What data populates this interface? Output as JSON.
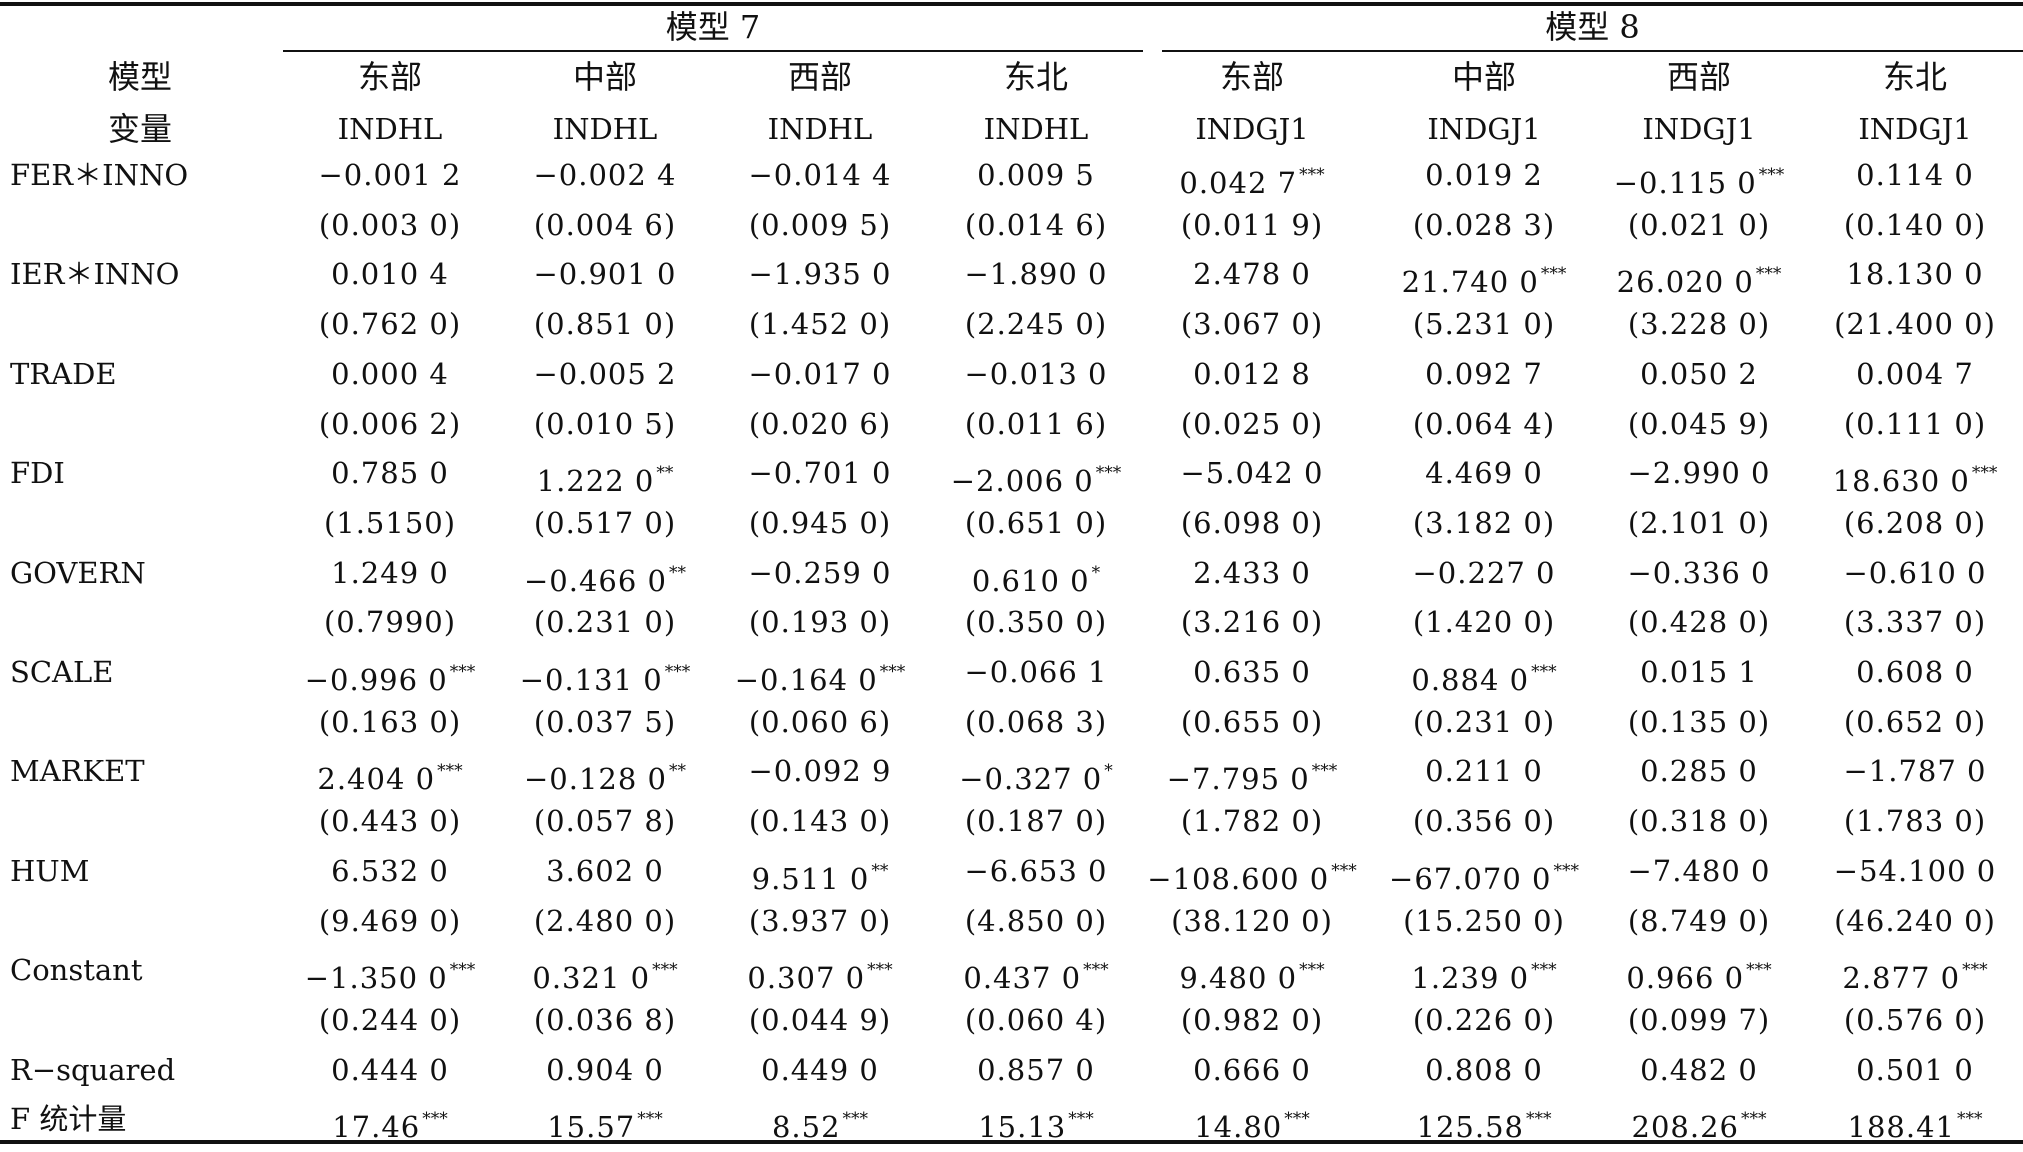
{
  "header": {
    "stub_line1": "模型",
    "stub_line2": "变量",
    "groups": [
      "模型 7",
      "模型 8"
    ],
    "regions": [
      "东部",
      "中部",
      "西部",
      "东北",
      "东部",
      "中部",
      "西部",
      "东北"
    ],
    "dependent": [
      "INDHL",
      "INDHL",
      "INDHL",
      "INDHL",
      "INDGJ1",
      "INDGJ1",
      "INDGJ1",
      "INDGJ1"
    ]
  },
  "rows": [
    {
      "label": "FER＊INNO",
      "cells": [
        {
          "v": "−0.001 2",
          "s": ""
        },
        {
          "v": "−0.002 4",
          "s": ""
        },
        {
          "v": "−0.014 4",
          "s": ""
        },
        {
          "v": "0.009 5",
          "s": ""
        },
        {
          "v": "0.042 7",
          "s": "***"
        },
        {
          "v": "0.019 2",
          "s": ""
        },
        {
          "v": "−0.115 0",
          "s": "***"
        },
        {
          "v": "0.114 0",
          "s": ""
        }
      ]
    },
    {
      "label": "",
      "cells": [
        {
          "v": "(0.003 0)",
          "s": ""
        },
        {
          "v": "(0.004 6)",
          "s": ""
        },
        {
          "v": "(0.009 5)",
          "s": ""
        },
        {
          "v": "(0.014 6)",
          "s": ""
        },
        {
          "v": "(0.011 9)",
          "s": ""
        },
        {
          "v": "(0.028 3)",
          "s": ""
        },
        {
          "v": "(0.021 0)",
          "s": ""
        },
        {
          "v": "(0.140 0)",
          "s": ""
        }
      ]
    },
    {
      "label": "IER＊INNO",
      "cells": [
        {
          "v": "0.010 4",
          "s": ""
        },
        {
          "v": "−0.901 0",
          "s": ""
        },
        {
          "v": "−1.935 0",
          "s": ""
        },
        {
          "v": "−1.890 0",
          "s": ""
        },
        {
          "v": "2.478 0",
          "s": ""
        },
        {
          "v": "21.740 0",
          "s": "***"
        },
        {
          "v": "26.020 0",
          "s": "***"
        },
        {
          "v": "18.130 0",
          "s": ""
        }
      ]
    },
    {
      "label": "",
      "cells": [
        {
          "v": "(0.762 0)",
          "s": ""
        },
        {
          "v": "(0.851 0)",
          "s": ""
        },
        {
          "v": "(1.452 0)",
          "s": ""
        },
        {
          "v": "(2.245 0)",
          "s": ""
        },
        {
          "v": "(3.067 0)",
          "s": ""
        },
        {
          "v": "(5.231 0)",
          "s": ""
        },
        {
          "v": "(3.228 0)",
          "s": ""
        },
        {
          "v": "(21.400 0)",
          "s": ""
        }
      ]
    },
    {
      "label": "TRADE",
      "cells": [
        {
          "v": "0.000 4",
          "s": ""
        },
        {
          "v": "−0.005 2",
          "s": ""
        },
        {
          "v": "−0.017 0",
          "s": ""
        },
        {
          "v": "−0.013 0",
          "s": ""
        },
        {
          "v": "0.012 8",
          "s": ""
        },
        {
          "v": "0.092 7",
          "s": ""
        },
        {
          "v": "0.050 2",
          "s": ""
        },
        {
          "v": "0.004 7",
          "s": ""
        }
      ]
    },
    {
      "label": "",
      "cells": [
        {
          "v": "(0.006 2)",
          "s": ""
        },
        {
          "v": "(0.010 5)",
          "s": ""
        },
        {
          "v": "(0.020 6)",
          "s": ""
        },
        {
          "v": "(0.011 6)",
          "s": ""
        },
        {
          "v": "(0.025 0)",
          "s": ""
        },
        {
          "v": "(0.064 4)",
          "s": ""
        },
        {
          "v": "(0.045 9)",
          "s": ""
        },
        {
          "v": "(0.111 0)",
          "s": ""
        }
      ]
    },
    {
      "label": "FDI",
      "cells": [
        {
          "v": "0.785 0",
          "s": ""
        },
        {
          "v": "1.222 0",
          "s": "**"
        },
        {
          "v": "−0.701 0",
          "s": ""
        },
        {
          "v": "−2.006 0",
          "s": "***"
        },
        {
          "v": "−5.042 0",
          "s": ""
        },
        {
          "v": "4.469 0",
          "s": ""
        },
        {
          "v": "−2.990 0",
          "s": ""
        },
        {
          "v": "18.630 0",
          "s": "***"
        }
      ]
    },
    {
      "label": "",
      "cells": [
        {
          "v": "(1.5150)",
          "s": ""
        },
        {
          "v": "(0.517 0)",
          "s": ""
        },
        {
          "v": "(0.945 0)",
          "s": ""
        },
        {
          "v": "(0.651 0)",
          "s": ""
        },
        {
          "v": "(6.098 0)",
          "s": ""
        },
        {
          "v": "(3.182 0)",
          "s": ""
        },
        {
          "v": "(2.101 0)",
          "s": ""
        },
        {
          "v": "(6.208 0)",
          "s": ""
        }
      ]
    },
    {
      "label": "GOVERN",
      "cells": [
        {
          "v": "1.249 0",
          "s": ""
        },
        {
          "v": "−0.466 0",
          "s": "**"
        },
        {
          "v": "−0.259 0",
          "s": ""
        },
        {
          "v": "0.610 0",
          "s": "*"
        },
        {
          "v": "2.433 0",
          "s": ""
        },
        {
          "v": "−0.227 0",
          "s": ""
        },
        {
          "v": "−0.336 0",
          "s": ""
        },
        {
          "v": "−0.610 0",
          "s": ""
        }
      ]
    },
    {
      "label": "",
      "cells": [
        {
          "v": "(0.7990)",
          "s": ""
        },
        {
          "v": "(0.231 0)",
          "s": ""
        },
        {
          "v": "(0.193 0)",
          "s": ""
        },
        {
          "v": "(0.350 0)",
          "s": ""
        },
        {
          "v": "(3.216 0)",
          "s": ""
        },
        {
          "v": "(1.420 0)",
          "s": ""
        },
        {
          "v": "(0.428 0)",
          "s": ""
        },
        {
          "v": "(3.337 0)",
          "s": ""
        }
      ]
    },
    {
      "label": "SCALE",
      "cells": [
        {
          "v": "−0.996 0",
          "s": "***"
        },
        {
          "v": "−0.131 0",
          "s": "***"
        },
        {
          "v": "−0.164 0",
          "s": "***"
        },
        {
          "v": "−0.066 1",
          "s": ""
        },
        {
          "v": "0.635 0",
          "s": ""
        },
        {
          "v": "0.884 0",
          "s": "***"
        },
        {
          "v": "0.015 1",
          "s": ""
        },
        {
          "v": "0.608 0",
          "s": ""
        }
      ]
    },
    {
      "label": "",
      "cells": [
        {
          "v": "(0.163 0)",
          "s": ""
        },
        {
          "v": "(0.037 5)",
          "s": ""
        },
        {
          "v": "(0.060 6)",
          "s": ""
        },
        {
          "v": "(0.068 3)",
          "s": ""
        },
        {
          "v": "(0.655 0)",
          "s": ""
        },
        {
          "v": "(0.231 0)",
          "s": ""
        },
        {
          "v": "(0.135 0)",
          "s": ""
        },
        {
          "v": "(0.652 0)",
          "s": ""
        }
      ]
    },
    {
      "label": "MARKET",
      "cells": [
        {
          "v": "2.404 0",
          "s": "***"
        },
        {
          "v": "−0.128 0",
          "s": "**"
        },
        {
          "v": "−0.092 9",
          "s": ""
        },
        {
          "v": "−0.327 0",
          "s": "*"
        },
        {
          "v": "−7.795 0",
          "s": "***"
        },
        {
          "v": "0.211 0",
          "s": ""
        },
        {
          "v": "0.285 0",
          "s": ""
        },
        {
          "v": "−1.787 0",
          "s": ""
        }
      ]
    },
    {
      "label": "",
      "cells": [
        {
          "v": "(0.443 0)",
          "s": ""
        },
        {
          "v": "(0.057 8)",
          "s": ""
        },
        {
          "v": "(0.143 0)",
          "s": ""
        },
        {
          "v": "(0.187 0)",
          "s": ""
        },
        {
          "v": "(1.782 0)",
          "s": ""
        },
        {
          "v": "(0.356 0)",
          "s": ""
        },
        {
          "v": "(0.318 0)",
          "s": ""
        },
        {
          "v": "(1.783 0)",
          "s": ""
        }
      ]
    },
    {
      "label": "HUM",
      "cells": [
        {
          "v": "6.532 0",
          "s": ""
        },
        {
          "v": "3.602 0",
          "s": ""
        },
        {
          "v": "9.511 0",
          "s": "**"
        },
        {
          "v": "−6.653 0",
          "s": ""
        },
        {
          "v": "−108.600 0",
          "s": "***"
        },
        {
          "v": "−67.070 0",
          "s": "***"
        },
        {
          "v": "−7.480 0",
          "s": ""
        },
        {
          "v": "−54.100 0",
          "s": ""
        }
      ]
    },
    {
      "label": "",
      "cells": [
        {
          "v": "(9.469 0)",
          "s": ""
        },
        {
          "v": "(2.480 0)",
          "s": ""
        },
        {
          "v": "(3.937 0)",
          "s": ""
        },
        {
          "v": "(4.850 0)",
          "s": ""
        },
        {
          "v": "(38.120 0)",
          "s": ""
        },
        {
          "v": "(15.250 0)",
          "s": ""
        },
        {
          "v": "(8.749 0)",
          "s": ""
        },
        {
          "v": "(46.240 0)",
          "s": ""
        }
      ]
    },
    {
      "label": "Constant",
      "cells": [
        {
          "v": "−1.350 0",
          "s": "***"
        },
        {
          "v": "0.321 0",
          "s": "***"
        },
        {
          "v": "0.307 0",
          "s": "***"
        },
        {
          "v": "0.437 0",
          "s": "***"
        },
        {
          "v": "9.480 0",
          "s": "***"
        },
        {
          "v": "1.239 0",
          "s": "***"
        },
        {
          "v": "0.966 0",
          "s": "***"
        },
        {
          "v": "2.877 0",
          "s": "***"
        }
      ]
    },
    {
      "label": "",
      "cells": [
        {
          "v": "(0.244 0)",
          "s": ""
        },
        {
          "v": "(0.036 8)",
          "s": ""
        },
        {
          "v": "(0.044 9)",
          "s": ""
        },
        {
          "v": "(0.060 4)",
          "s": ""
        },
        {
          "v": "(0.982 0)",
          "s": ""
        },
        {
          "v": "(0.226 0)",
          "s": ""
        },
        {
          "v": "(0.099 7)",
          "s": ""
        },
        {
          "v": "(0.576 0)",
          "s": ""
        }
      ]
    },
    {
      "label": "R−squared",
      "cells": [
        {
          "v": "0.444 0",
          "s": ""
        },
        {
          "v": "0.904 0",
          "s": ""
        },
        {
          "v": "0.449 0",
          "s": ""
        },
        {
          "v": "0.857 0",
          "s": ""
        },
        {
          "v": "0.666 0",
          "s": ""
        },
        {
          "v": "0.808 0",
          "s": ""
        },
        {
          "v": "0.482 0",
          "s": ""
        },
        {
          "v": "0.501 0",
          "s": ""
        }
      ]
    },
    {
      "label": "F 统计量",
      "cells": [
        {
          "v": "17.46",
          "s": "***"
        },
        {
          "v": "15.57",
          "s": "***"
        },
        {
          "v": "8.52",
          "s": "***"
        },
        {
          "v": "15.13",
          "s": "***"
        },
        {
          "v": "14.80",
          "s": "***"
        },
        {
          "v": "125.58",
          "s": "***"
        },
        {
          "v": "208.26",
          "s": "***"
        },
        {
          "v": "188.41",
          "s": "***"
        }
      ]
    }
  ]
}
